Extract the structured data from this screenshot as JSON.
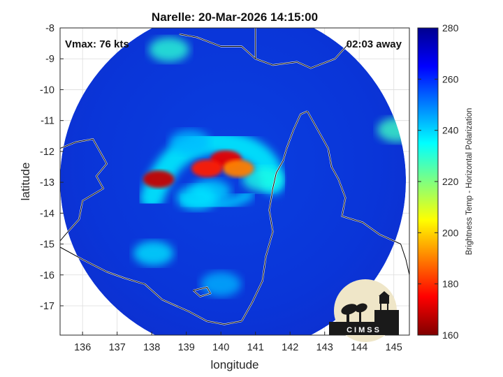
{
  "chart_data": {
    "type": "heatmap",
    "title": "Narelle: 20-Mar-2026 14:15:00",
    "xlabel": "longitude",
    "ylabel": "latitude",
    "xlim": [
      135.35,
      145.45
    ],
    "ylim": [
      -17.95,
      -8.0
    ],
    "x_ticks": [
      136,
      137,
      138,
      139,
      140,
      141,
      142,
      143,
      144,
      145
    ],
    "y_ticks": [
      -8,
      -9,
      -10,
      -11,
      -12,
      -13,
      -14,
      -15,
      -16,
      -17
    ],
    "grid": true,
    "annotations": {
      "vmax": "Vmax: 76 kts",
      "time_offset": "02:03 away"
    },
    "colorbar": {
      "label": "Brightness Temp - Horizontal Polarization",
      "min": 160,
      "max": 280,
      "ticks": [
        160,
        180,
        200,
        220,
        240,
        260,
        280
      ],
      "colormap": "jet"
    },
    "swath": {
      "center_lon": 140.35,
      "center_lat": -12.95,
      "radius_deg": 5.0
    },
    "features": [
      {
        "lon": 140.15,
        "lat": -12.25,
        "value": 172
      },
      {
        "lon": 140.5,
        "lat": -12.55,
        "value": 190
      },
      {
        "lon": 139.6,
        "lat": -12.55,
        "value": 178
      },
      {
        "lon": 138.2,
        "lat": -12.9,
        "value": 168
      },
      {
        "lon": 139.7,
        "lat": -13.3,
        "value": 240
      },
      {
        "lon": 139.1,
        "lat": -11.7,
        "value": 243
      },
      {
        "lon": 141.2,
        "lat": -12.9,
        "value": 232
      },
      {
        "lon": 139.3,
        "lat": -13.5,
        "value": 238
      },
      {
        "lon": 138.05,
        "lat": -15.3,
        "value": 238
      },
      {
        "lon": 140.0,
        "lat": -16.3,
        "value": 244
      },
      {
        "lon": 145.1,
        "lat": -11.3,
        "value": 228
      },
      {
        "lon": 138.5,
        "lat": -8.7,
        "value": 230
      }
    ]
  },
  "logo": {
    "text": "CIMSS"
  }
}
